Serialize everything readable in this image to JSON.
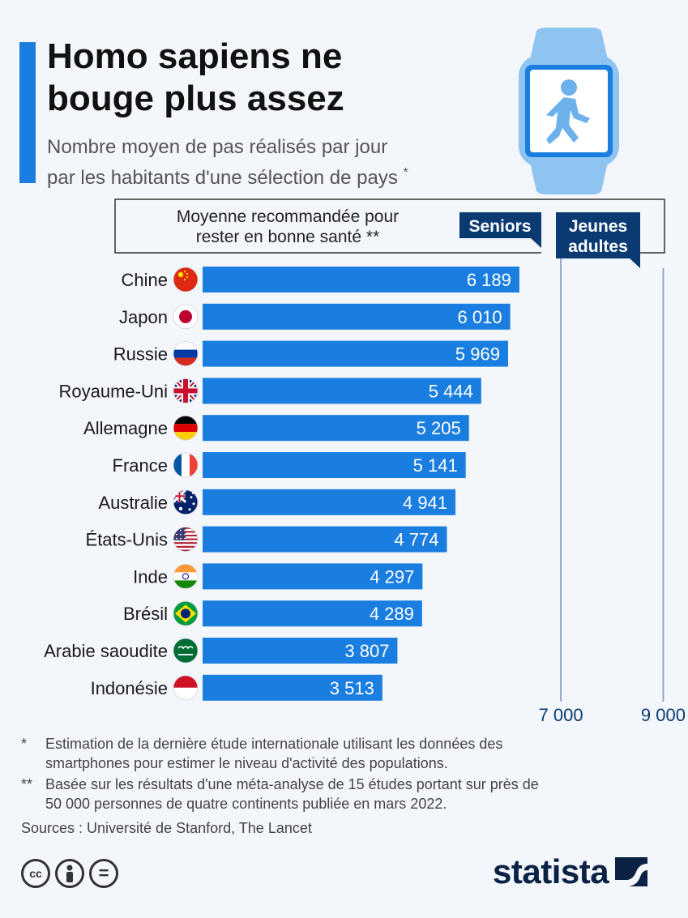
{
  "header": {
    "title_line1": "Homo sapiens ne",
    "title_line2": "bouge plus assez",
    "subtitle_line1": "Nombre moyen de pas réalisés par jour",
    "subtitle_line2": "par les habitants d'une sélection de pays",
    "subtitle_mark": "*"
  },
  "colors": {
    "bar": "#1a7ee0",
    "accent": "#1a7ee0",
    "dark_label": "#0b3a73",
    "guide": "#8aa2c4"
  },
  "chart_data": {
    "type": "bar",
    "orientation": "horizontal",
    "categories": [
      "Chine",
      "Japon",
      "Russie",
      "Royaume-Uni",
      "Allemagne",
      "France",
      "Australie",
      "États-Unis",
      "Inde",
      "Brésil",
      "Arabie saoudite",
      "Indonésie"
    ],
    "values": [
      6189,
      6010,
      5969,
      5444,
      5205,
      5141,
      4941,
      4774,
      4297,
      4289,
      3807,
      3513
    ],
    "value_labels": [
      "6 189",
      "6 010",
      "5 969",
      "5 444",
      "5 205",
      "5 141",
      "4 941",
      "4 774",
      "4 297",
      "4 289",
      "3 807",
      "3 513"
    ],
    "flags": [
      "china-flag",
      "japan-flag",
      "russia-flag",
      "uk-flag",
      "germany-flag",
      "france-flag",
      "australia-flag",
      "usa-flag",
      "india-flag",
      "brazil-flag",
      "saudi-arabia-flag",
      "indonesia-flag"
    ],
    "xlim": [
      0,
      9500
    ],
    "reference_lines": [
      {
        "value": 7000,
        "label": "Seniors",
        "tick": "7 000"
      },
      {
        "value": 9000,
        "label_line1": "Jeunes",
        "label_line2": "adultes",
        "tick": "9 000"
      }
    ],
    "reference_box_line1": "Moyenne recommandée pour",
    "reference_box_line2": "rester en bonne santé **"
  },
  "notes": {
    "note1_mark": "*",
    "note1_line1": "Estimation de la dernière étude internationale utilisant les données des",
    "note1_line2": "smartphones pour estimer le niveau d'activité des populations.",
    "note2_mark": "**",
    "note2_line1": "Basée sur les résultats d'une méta-analyse de 15 études portant sur près de",
    "note2_line2": "50 000 personnes de quatre continents publiée en mars 2022.",
    "sources": "Sources : Université de Stanford, The Lancet"
  },
  "footer": {
    "cc_label": "cc",
    "eq_label": "=",
    "logo": "statista"
  }
}
